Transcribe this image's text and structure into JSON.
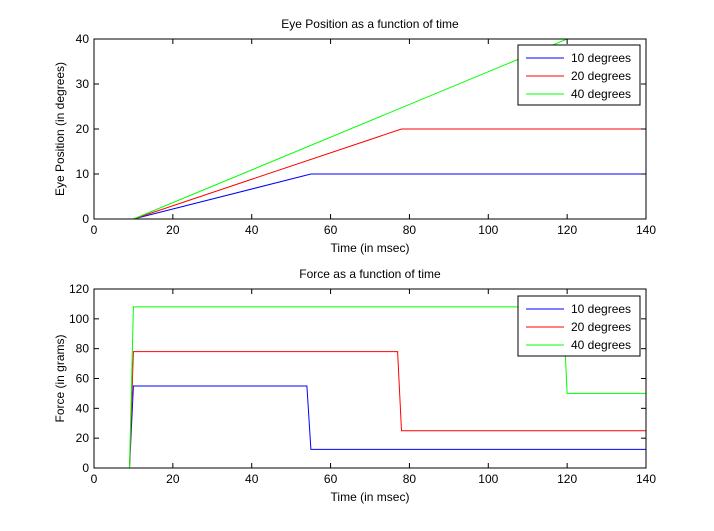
{
  "chart_data": [
    {
      "type": "line",
      "title": "Eye Position as a function of time",
      "xlabel": "Time (in msec)",
      "ylabel": "Eye Position (in degrees)",
      "xlim": [
        0,
        140
      ],
      "ylim": [
        0,
        40
      ],
      "xticks": [
        0,
        20,
        40,
        60,
        80,
        100,
        120,
        140
      ],
      "yticks": [
        0,
        10,
        20,
        30,
        40
      ],
      "grid": false,
      "legend_position": "top-right",
      "series": [
        {
          "name": "10 degrees",
          "color": "#0000ff",
          "x": [
            10,
            55,
            140
          ],
          "y": [
            0,
            10,
            10
          ]
        },
        {
          "name": "20 degrees",
          "color": "#ff0000",
          "x": [
            10,
            78,
            140
          ],
          "y": [
            0,
            20,
            20
          ]
        },
        {
          "name": "40 degrees",
          "color": "#00ff00",
          "x": [
            10,
            120,
            140
          ],
          "y": [
            0,
            40,
            40
          ]
        }
      ]
    },
    {
      "type": "line",
      "title": "Force as a function of time",
      "xlabel": "Time (in msec)",
      "ylabel": "Force (in grams)",
      "xlim": [
        0,
        140
      ],
      "ylim": [
        0,
        120
      ],
      "xticks": [
        0,
        20,
        40,
        60,
        80,
        100,
        120,
        140
      ],
      "yticks": [
        0,
        20,
        40,
        60,
        80,
        100,
        120
      ],
      "grid": false,
      "legend_position": "top-right",
      "series": [
        {
          "name": "10 degrees",
          "color": "#0000ff",
          "x": [
            9,
            10,
            54,
            55,
            140
          ],
          "y": [
            0,
            55,
            55,
            12.5,
            12.5
          ]
        },
        {
          "name": "20 degrees",
          "color": "#ff0000",
          "x": [
            9,
            10,
            77,
            78,
            140
          ],
          "y": [
            0,
            78,
            78,
            25,
            25
          ]
        },
        {
          "name": "40 degrees",
          "color": "#00ff00",
          "x": [
            9,
            10,
            119,
            120,
            140
          ],
          "y": [
            0,
            108,
            108,
            50,
            50
          ]
        }
      ]
    }
  ]
}
